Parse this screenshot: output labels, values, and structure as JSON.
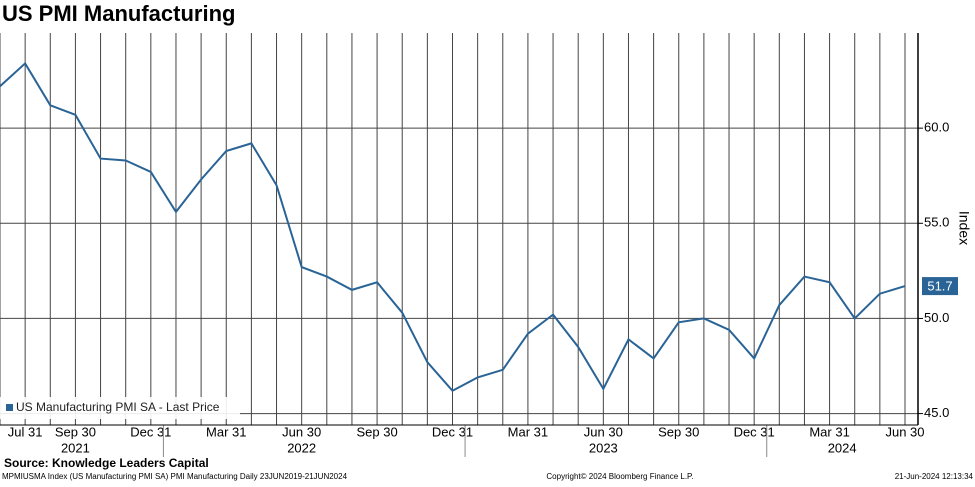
{
  "chart_data": {
    "type": "line",
    "title": "US PMI Manufacturing",
    "categories": [
      null,
      "Jul 31",
      null,
      "Sep 30",
      null,
      null,
      "Dec 31",
      null,
      null,
      "Mar 31",
      null,
      null,
      "Jun 30",
      null,
      null,
      "Sep 30",
      null,
      null,
      "Dec 31",
      null,
      null,
      "Mar 31",
      null,
      null,
      "Jun 30",
      null,
      null,
      "Sep 30",
      null,
      null,
      "Dec 31",
      null,
      null,
      "Mar 31",
      null,
      null,
      "Jun 30"
    ],
    "years": [
      "2021",
      "2022",
      "2023",
      "2024"
    ],
    "series": [
      {
        "name": "US Manufacturing PMI SA - Last Price",
        "color": "#2a6496",
        "values": [
          62.2,
          63.4,
          61.2,
          60.7,
          58.4,
          58.3,
          57.7,
          55.6,
          57.3,
          58.8,
          59.2,
          57.0,
          52.7,
          52.2,
          51.5,
          51.9,
          50.3,
          47.7,
          46.2,
          46.9,
          47.3,
          49.2,
          50.2,
          48.5,
          46.3,
          48.9,
          47.9,
          49.8,
          50.0,
          49.4,
          47.9,
          50.7,
          52.2,
          51.9,
          50.0,
          51.3,
          51.7
        ]
      }
    ],
    "ylabel": "Index",
    "ylim": [
      44.4,
      65
    ],
    "yticks": [
      {
        "value": 45,
        "label": "45.0"
      },
      {
        "value": 50,
        "label": "50.0"
      },
      {
        "value": 55,
        "label": "55.0"
      },
      {
        "value": 60,
        "label": "60.0"
      }
    ],
    "grid": true,
    "source": "Source: Knowledge Leaders Capital",
    "footer_left": "MPMIUSMA Index (US Manufacturing PMI SA) PMI Manufacturing  Daily 23JUN2019-21JUN2024",
    "footer_center": "Copyright© 2024 Bloomberg Finance L.P.",
    "footer_right": "21-Jun-2024 12:13:34"
  }
}
